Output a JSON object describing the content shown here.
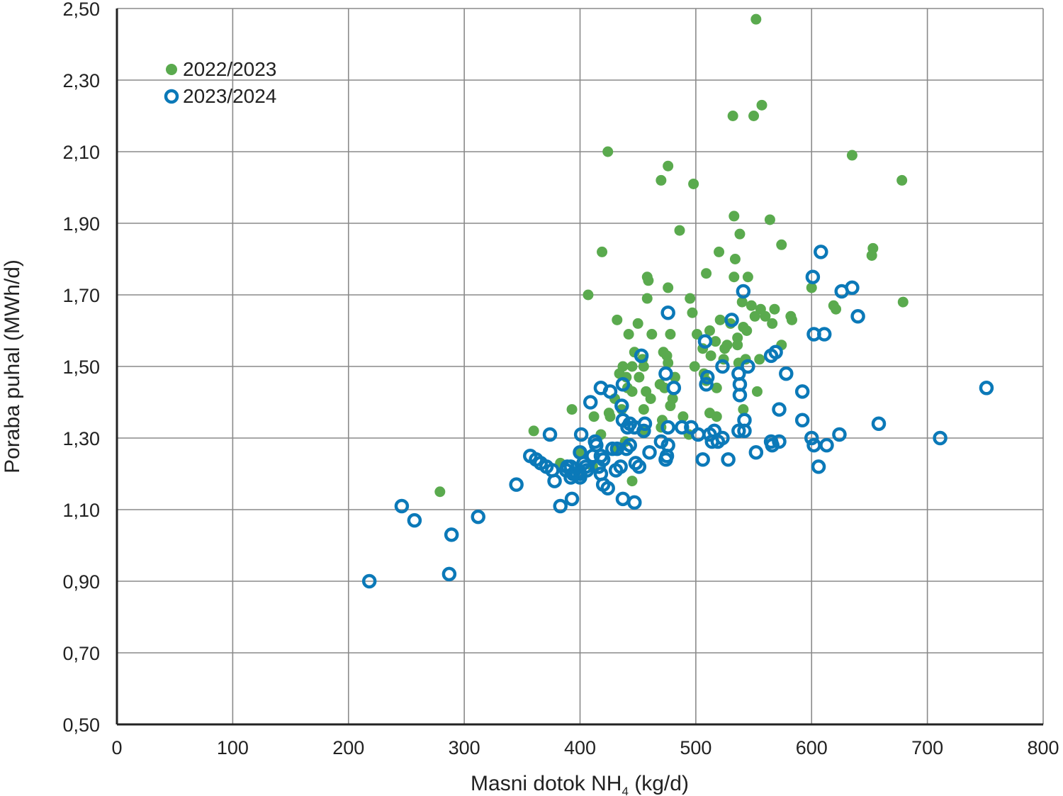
{
  "chart_data": {
    "type": "scatter",
    "xlabel": "Masni dotok NH",
    "xlabel_sub": "4",
    "xlabel_unit": " (kg/d)",
    "ylabel": "Poraba puhal (MWh/d)",
    "xlim": [
      0,
      800
    ],
    "ylim": [
      0.5,
      2.5
    ],
    "x_ticks": [
      0,
      100,
      200,
      300,
      400,
      500,
      600,
      700,
      800
    ],
    "x_tick_labels": [
      "0",
      "100",
      "200",
      "300",
      "400",
      "500",
      "600",
      "700",
      "800"
    ],
    "y_ticks": [
      0.5,
      0.7,
      0.9,
      1.1,
      1.3,
      1.5,
      1.7,
      1.9,
      2.1,
      2.3,
      2.5
    ],
    "y_tick_labels": [
      "0,50",
      "0,70",
      "0,90",
      "1,10",
      "1,30",
      "1,50",
      "1,70",
      "1,90",
      "2,10",
      "2,30",
      "2,50"
    ],
    "grid": true,
    "legend_position": "top-left",
    "series": [
      {
        "name": "2022/2023",
        "color": "#5aaa4e",
        "marker": "filled-circle",
        "points": [
          [
            552,
            2.47
          ],
          [
            532,
            2.2
          ],
          [
            550,
            2.2
          ],
          [
            557,
            2.23
          ],
          [
            424,
            2.1
          ],
          [
            635,
            2.09
          ],
          [
            476,
            2.06
          ],
          [
            470,
            2.02
          ],
          [
            498,
            2.01
          ],
          [
            678,
            2.02
          ],
          [
            533,
            1.92
          ],
          [
            564,
            1.91
          ],
          [
            486,
            1.88
          ],
          [
            538,
            1.87
          ],
          [
            574,
            1.84
          ],
          [
            419,
            1.82
          ],
          [
            520,
            1.82
          ],
          [
            653,
            1.83
          ],
          [
            652,
            1.81
          ],
          [
            534,
            1.8
          ],
          [
            509,
            1.76
          ],
          [
            458,
            1.75
          ],
          [
            459,
            1.74
          ],
          [
            533,
            1.75
          ],
          [
            545,
            1.75
          ],
          [
            476,
            1.72
          ],
          [
            600,
            1.72
          ],
          [
            407,
            1.7
          ],
          [
            458,
            1.69
          ],
          [
            495,
            1.69
          ],
          [
            679,
            1.68
          ],
          [
            619,
            1.67
          ],
          [
            621,
            1.66
          ],
          [
            548,
            1.67
          ],
          [
            568,
            1.66
          ],
          [
            556,
            1.66
          ],
          [
            540,
            1.68
          ],
          [
            551,
            1.64
          ],
          [
            560,
            1.64
          ],
          [
            582,
            1.64
          ],
          [
            583,
            1.63
          ],
          [
            497,
            1.65
          ],
          [
            432,
            1.63
          ],
          [
            450,
            1.62
          ],
          [
            521,
            1.63
          ],
          [
            530,
            1.62
          ],
          [
            566,
            1.62
          ],
          [
            442,
            1.59
          ],
          [
            462,
            1.59
          ],
          [
            478,
            1.59
          ],
          [
            501,
            1.59
          ],
          [
            512,
            1.6
          ],
          [
            536,
            1.58
          ],
          [
            544,
            1.6
          ],
          [
            541,
            1.61
          ],
          [
            574,
            1.56
          ],
          [
            517,
            1.57
          ],
          [
            527,
            1.56
          ],
          [
            536,
            1.56
          ],
          [
            506,
            1.55
          ],
          [
            525,
            1.55
          ],
          [
            447,
            1.54
          ],
          [
            472,
            1.54
          ],
          [
            475,
            1.53
          ],
          [
            513,
            1.53
          ],
          [
            454,
            1.52
          ],
          [
            455,
            1.5
          ],
          [
            437,
            1.5
          ],
          [
            445,
            1.5
          ],
          [
            476,
            1.51
          ],
          [
            499,
            1.5
          ],
          [
            524,
            1.52
          ],
          [
            537,
            1.51
          ],
          [
            543,
            1.52
          ],
          [
            555,
            1.52
          ],
          [
            434,
            1.48
          ],
          [
            440,
            1.47
          ],
          [
            451,
            1.47
          ],
          [
            482,
            1.47
          ],
          [
            507,
            1.48
          ],
          [
            509,
            1.46
          ],
          [
            441,
            1.44
          ],
          [
            445,
            1.43
          ],
          [
            457,
            1.43
          ],
          [
            469,
            1.45
          ],
          [
            473,
            1.44
          ],
          [
            518,
            1.44
          ],
          [
            553,
            1.43
          ],
          [
            430,
            1.41
          ],
          [
            461,
            1.41
          ],
          [
            480,
            1.41
          ],
          [
            436,
            1.38
          ],
          [
            455,
            1.38
          ],
          [
            478,
            1.39
          ],
          [
            393,
            1.38
          ],
          [
            425,
            1.37
          ],
          [
            512,
            1.37
          ],
          [
            541,
            1.38
          ],
          [
            426,
            1.36
          ],
          [
            412,
            1.36
          ],
          [
            471,
            1.35
          ],
          [
            489,
            1.36
          ],
          [
            518,
            1.36
          ],
          [
            470,
            1.33
          ],
          [
            494,
            1.31
          ],
          [
            360,
            1.32
          ],
          [
            418,
            1.31
          ],
          [
            439,
            1.29
          ],
          [
            454,
            1.32
          ],
          [
            432,
            1.27
          ],
          [
            399,
            1.26
          ],
          [
            383,
            1.23
          ],
          [
            411,
            1.22
          ],
          [
            445,
            1.18
          ],
          [
            279,
            1.15
          ]
        ]
      },
      {
        "name": "2023/2024",
        "color": "#0b79b8",
        "marker": "open-circle",
        "points": [
          [
            608,
            1.82
          ],
          [
            601,
            1.75
          ],
          [
            635,
            1.72
          ],
          [
            541,
            1.71
          ],
          [
            626,
            1.71
          ],
          [
            476,
            1.65
          ],
          [
            640,
            1.64
          ],
          [
            531,
            1.63
          ],
          [
            602,
            1.59
          ],
          [
            611,
            1.59
          ],
          [
            508,
            1.57
          ],
          [
            569,
            1.54
          ],
          [
            565,
            1.53
          ],
          [
            453,
            1.53
          ],
          [
            523,
            1.5
          ],
          [
            545,
            1.5
          ],
          [
            537,
            1.48
          ],
          [
            474,
            1.48
          ],
          [
            578,
            1.48
          ],
          [
            510,
            1.47
          ],
          [
            509,
            1.45
          ],
          [
            538,
            1.45
          ],
          [
            437,
            1.45
          ],
          [
            418,
            1.44
          ],
          [
            481,
            1.44
          ],
          [
            751,
            1.44
          ],
          [
            426,
            1.43
          ],
          [
            592,
            1.43
          ],
          [
            538,
            1.42
          ],
          [
            409,
            1.4
          ],
          [
            436,
            1.39
          ],
          [
            572,
            1.38
          ],
          [
            437,
            1.35
          ],
          [
            542,
            1.35
          ],
          [
            658,
            1.34
          ],
          [
            592,
            1.35
          ],
          [
            443,
            1.34
          ],
          [
            456,
            1.34
          ],
          [
            476,
            1.33
          ],
          [
            488,
            1.33
          ],
          [
            496,
            1.33
          ],
          [
            447,
            1.33
          ],
          [
            441,
            1.33
          ],
          [
            455,
            1.32
          ],
          [
            516,
            1.32
          ],
          [
            537,
            1.32
          ],
          [
            542,
            1.32
          ],
          [
            374,
            1.31
          ],
          [
            401,
            1.31
          ],
          [
            502,
            1.31
          ],
          [
            512,
            1.31
          ],
          [
            624,
            1.31
          ],
          [
            711,
            1.3
          ],
          [
            600,
            1.3
          ],
          [
            523,
            1.3
          ],
          [
            519,
            1.29
          ],
          [
            514,
            1.29
          ],
          [
            565,
            1.29
          ],
          [
            572,
            1.29
          ],
          [
            470,
            1.29
          ],
          [
            476,
            1.28
          ],
          [
            413,
            1.29
          ],
          [
            414,
            1.28
          ],
          [
            443,
            1.28
          ],
          [
            566,
            1.28
          ],
          [
            602,
            1.28
          ],
          [
            613,
            1.28
          ],
          [
            440,
            1.27
          ],
          [
            428,
            1.27
          ],
          [
            432,
            1.27
          ],
          [
            460,
            1.26
          ],
          [
            400,
            1.26
          ],
          [
            552,
            1.26
          ],
          [
            357,
            1.25
          ],
          [
            411,
            1.25
          ],
          [
            418,
            1.25
          ],
          [
            420,
            1.24
          ],
          [
            362,
            1.24
          ],
          [
            366,
            1.23
          ],
          [
            403,
            1.23
          ],
          [
            474,
            1.24
          ],
          [
            475,
            1.25
          ],
          [
            506,
            1.24
          ],
          [
            528,
            1.24
          ],
          [
            371,
            1.22
          ],
          [
            376,
            1.21
          ],
          [
            389,
            1.22
          ],
          [
            392,
            1.22
          ],
          [
            405,
            1.22
          ],
          [
            416,
            1.22
          ],
          [
            435,
            1.22
          ],
          [
            448,
            1.23
          ],
          [
            451,
            1.22
          ],
          [
            606,
            1.22
          ],
          [
            431,
            1.21
          ],
          [
            388,
            1.21
          ],
          [
            394,
            1.2
          ],
          [
            397,
            1.2
          ],
          [
            400,
            1.2
          ],
          [
            418,
            1.2
          ],
          [
            406,
            1.21
          ],
          [
            392,
            1.19
          ],
          [
            400,
            1.19
          ],
          [
            378,
            1.18
          ],
          [
            420,
            1.17
          ],
          [
            424,
            1.16
          ],
          [
            345,
            1.17
          ],
          [
            393,
            1.13
          ],
          [
            437,
            1.13
          ],
          [
            447,
            1.12
          ],
          [
            383,
            1.11
          ],
          [
            246,
            1.11
          ],
          [
            312,
            1.08
          ],
          [
            257,
            1.07
          ],
          [
            289,
            1.03
          ],
          [
            287,
            0.92
          ],
          [
            218,
            0.9
          ]
        ]
      }
    ]
  }
}
